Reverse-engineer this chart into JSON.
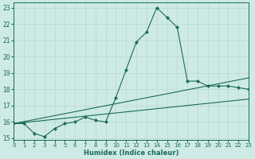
{
  "xlabel": "Humidex (Indice chaleur)",
  "ylabel": "",
  "bg_color": "#ceeae4",
  "grid_color": "#b8d8d2",
  "line_color": "#1a6b5a",
  "xlim": [
    0,
    23
  ],
  "ylim": [
    14.9,
    23.3
  ],
  "yticks": [
    15,
    16,
    17,
    18,
    19,
    20,
    21,
    22,
    23
  ],
  "xticks": [
    0,
    1,
    2,
    3,
    4,
    5,
    6,
    7,
    8,
    9,
    10,
    11,
    12,
    13,
    14,
    15,
    16,
    17,
    18,
    19,
    20,
    21,
    22,
    23
  ],
  "line1_x": [
    0,
    1,
    2,
    3,
    4,
    5,
    6,
    7,
    8,
    9,
    10,
    11,
    12,
    13,
    14,
    15,
    16,
    17,
    18,
    19,
    20,
    21,
    22,
    23
  ],
  "line1_y": [
    15.9,
    15.9,
    15.3,
    15.1,
    15.6,
    15.9,
    16.0,
    16.3,
    16.1,
    16.0,
    17.5,
    19.2,
    20.9,
    21.5,
    23.0,
    22.4,
    21.8,
    18.5,
    18.5,
    18.2,
    18.2,
    18.2,
    18.1,
    18.0
  ],
  "line2_x": [
    0,
    23
  ],
  "line2_y": [
    15.9,
    18.7
  ],
  "line3_x": [
    0,
    23
  ],
  "line3_y": [
    15.9,
    17.4
  ]
}
